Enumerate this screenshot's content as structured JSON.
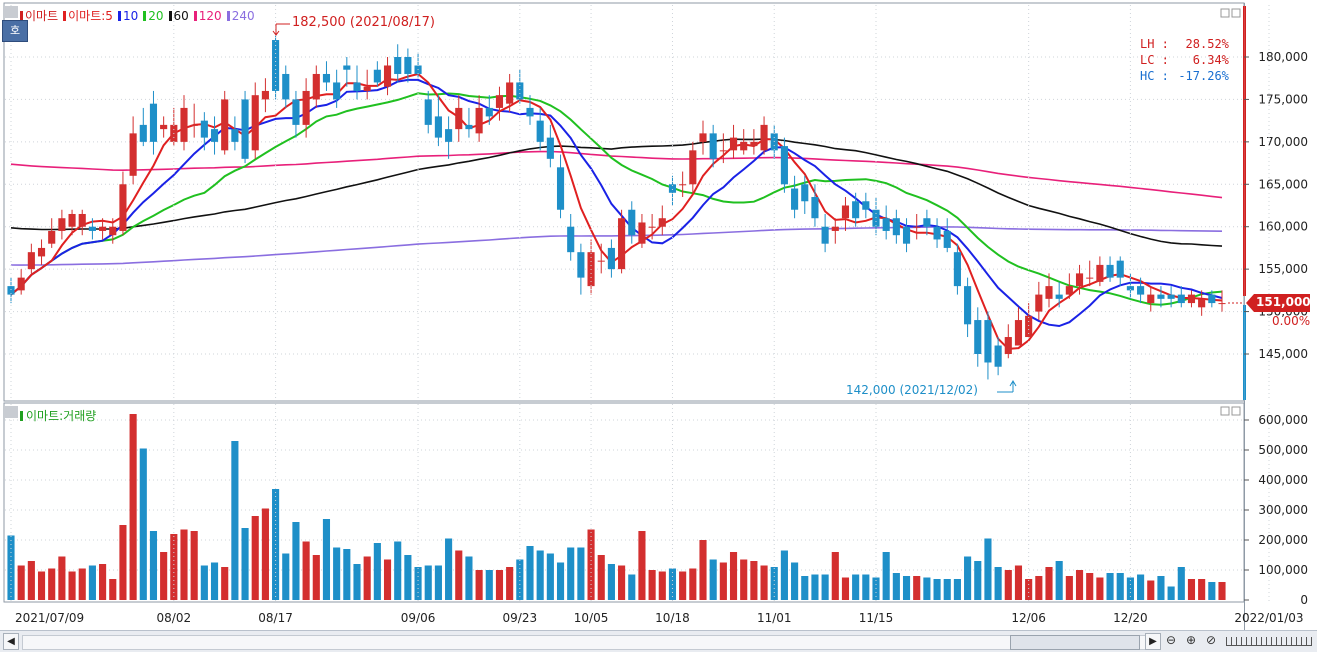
{
  "legend_price": [
    {
      "label": "이마트",
      "color": "#d02020"
    },
    {
      "label": "이마트:5",
      "color": "#e02020"
    },
    {
      "label": "10",
      "color": "#1a22e6"
    },
    {
      "label": "20",
      "color": "#20c020"
    },
    {
      "label": "60",
      "color": "#111111"
    },
    {
      "label": "120",
      "color": "#e8207a"
    },
    {
      "label": "240",
      "color": "#8a6ee0"
    }
  ],
  "legend_volume": {
    "label": "이마트:거래량",
    "color": "#20a020"
  },
  "hoga_label": "호",
  "annotations": {
    "high": "182,500 (2021/08/17)",
    "low": "142,000 (2021/12/02)"
  },
  "stats": [
    {
      "label": "LH",
      "value": "28.52%",
      "color": "#d02020"
    },
    {
      "label": "LC",
      "value": "6.34%",
      "color": "#d02020"
    },
    {
      "label": "HC",
      "value": "-17.26%",
      "color": "#1a6fd0"
    }
  ],
  "last_price": {
    "value": "151,000",
    "change": "0.00%"
  },
  "x_labels": [
    "2021/07/09",
    "08/02",
    "08/17",
    "09/06",
    "09/23",
    "10/05",
    "10/18",
    "11/01",
    "11/15",
    "12/06",
    "12/20",
    "2022/01/03"
  ],
  "price_ticks": [
    "180,000",
    "175,000",
    "170,000",
    "165,000",
    "160,000",
    "155,000",
    "150,000",
    "145,000"
  ],
  "volume_ticks": [
    "600,000",
    "500,000",
    "400,000",
    "300,000",
    "200,000",
    "100,000",
    "0"
  ],
  "chart_data": [
    {
      "type": "candlestick",
      "title": "이마트",
      "ylim": [
        140000,
        185000
      ],
      "x": [
        "2021/07/09",
        "07/12",
        "07/13",
        "07/14",
        "07/15",
        "07/16",
        "07/19",
        "07/20",
        "07/21",
        "07/22",
        "07/23",
        "07/26",
        "07/27",
        "07/28",
        "07/29",
        "07/30",
        "08/02",
        "08/03",
        "08/04",
        "08/05",
        "08/06",
        "08/09",
        "08/10",
        "08/11",
        "08/12",
        "08/13",
        "08/17",
        "08/18",
        "08/19",
        "08/20",
        "08/23",
        "08/24",
        "08/25",
        "08/26",
        "08/27",
        "08/30",
        "08/31",
        "09/01",
        "09/02",
        "09/03",
        "09/06",
        "09/07",
        "09/08",
        "09/09",
        "09/10",
        "09/13",
        "09/14",
        "09/15",
        "09/16",
        "09/17",
        "09/23",
        "09/24",
        "09/27",
        "09/28",
        "09/29",
        "09/30",
        "10/01",
        "10/05",
        "10/06",
        "10/07",
        "10/08",
        "10/12",
        "10/13",
        "10/14",
        "10/15",
        "10/18",
        "10/19",
        "10/20",
        "10/21",
        "10/22",
        "10/25",
        "10/26",
        "10/27",
        "10/28",
        "10/29",
        "11/01",
        "11/02",
        "11/03",
        "11/04",
        "11/05",
        "11/08",
        "11/09",
        "11/10",
        "11/11",
        "11/12",
        "11/15",
        "11/16",
        "11/17",
        "11/18",
        "11/19",
        "11/22",
        "11/23",
        "11/24",
        "11/25",
        "11/26",
        "11/29",
        "11/30",
        "12/01",
        "12/02",
        "12/03",
        "12/06",
        "12/07",
        "12/08",
        "12/09",
        "12/10",
        "12/13",
        "12/14",
        "12/15",
        "12/16",
        "12/17",
        "12/20",
        "12/21",
        "12/22",
        "12/23",
        "12/24",
        "12/27",
        "12/28",
        "12/29",
        "12/30",
        "2022/01/03"
      ],
      "open": [
        153000,
        152500,
        155000,
        156500,
        158000,
        159500,
        160000,
        160000,
        160000,
        159500,
        159000,
        159500,
        166000,
        172000,
        174500,
        171500,
        170000,
        170000,
        172000,
        172500,
        171500,
        169000,
        171500,
        175000,
        169000,
        175000,
        182000,
        178000,
        175000,
        172000,
        175000,
        178000,
        177000,
        179000,
        177000,
        176000,
        178500,
        176500,
        180000,
        180000,
        179000,
        175000,
        173000,
        171500,
        171500,
        172000,
        171000,
        174000,
        174000,
        174500,
        177000,
        174000,
        172500,
        170500,
        167000,
        160000,
        157000,
        153000,
        156000,
        157500,
        155000,
        162000,
        158000,
        160000,
        160000,
        165000,
        165000,
        165000,
        170000,
        171000,
        169000,
        169000,
        169000,
        169500,
        169000,
        171000,
        169500,
        164500,
        165000,
        163500,
        160000,
        159500,
        161000,
        163000,
        163000,
        162000,
        161000,
        161000,
        160000,
        160000,
        161000,
        160000,
        159500,
        157000,
        153000,
        149000,
        149000,
        146000,
        145000,
        146000,
        147000,
        150000,
        151500,
        152000,
        152000,
        153000,
        154000,
        153500,
        155500,
        156000,
        153000,
        153000,
        151000,
        152000,
        152000,
        152000,
        151000,
        150500,
        152000,
        151000
      ],
      "close": [
        152000,
        154000,
        157000,
        157500,
        159500,
        161000,
        161500,
        161500,
        159500,
        160000,
        160000,
        165000,
        171000,
        170000,
        170000,
        172000,
        172000,
        174000,
        172000,
        170500,
        170000,
        175000,
        170000,
        168000,
        175500,
        176000,
        176000,
        175000,
        172000,
        176000,
        178000,
        177000,
        175000,
        178500,
        176000,
        176500,
        177000,
        179000,
        178000,
        178000,
        178000,
        172000,
        170500,
        170000,
        174000,
        171500,
        174000,
        173000,
        175500,
        177000,
        175000,
        173000,
        170000,
        168000,
        162000,
        157000,
        154000,
        157000,
        156000,
        155000,
        161000,
        159000,
        160500,
        160000,
        161000,
        164000,
        165000,
        169000,
        171000,
        168000,
        169000,
        170500,
        170000,
        170000,
        172000,
        169000,
        165000,
        162000,
        163000,
        161000,
        158000,
        160000,
        162500,
        161000,
        162000,
        160000,
        159500,
        159000,
        158000,
        160000,
        160000,
        158500,
        157500,
        153000,
        148500,
        145000,
        144000,
        143500,
        147000,
        149000,
        149500,
        152000,
        153000,
        151500,
        153000,
        154500,
        154000,
        155500,
        154000,
        154000,
        152500,
        152000,
        152000,
        151500,
        151500,
        151000,
        152000,
        151500,
        151000,
        151000
      ],
      "high": [
        154000,
        155000,
        158000,
        158500,
        161000,
        162000,
        162000,
        162000,
        161000,
        161000,
        161000,
        166500,
        173000,
        174000,
        176000,
        173000,
        174000,
        175500,
        174500,
        173500,
        173000,
        176000,
        173000,
        176000,
        177000,
        177500,
        182500,
        179000,
        176000,
        177500,
        179000,
        179500,
        178500,
        180000,
        179000,
        178500,
        179500,
        180000,
        181500,
        181000,
        180500,
        176000,
        175500,
        173000,
        175500,
        174000,
        175500,
        175500,
        176500,
        178000,
        178500,
        175500,
        174000,
        172000,
        168500,
        161500,
        158000,
        158500,
        158000,
        158500,
        162000,
        163000,
        161500,
        161500,
        162500,
        166000,
        166500,
        170000,
        172500,
        172000,
        171000,
        172000,
        171500,
        171500,
        173000,
        172000,
        170500,
        166000,
        166000,
        165000,
        161500,
        161000,
        163500,
        164000,
        164000,
        163500,
        162500,
        162000,
        161000,
        161500,
        162000,
        161000,
        161000,
        158000,
        154000,
        150500,
        150000,
        147000,
        148500,
        150500,
        151000,
        153500,
        154500,
        153500,
        154500,
        155500,
        156000,
        156500,
        156500,
        156500,
        154500,
        154000,
        153000,
        153000,
        153000,
        153000,
        152500,
        152500,
        152500,
        152500
      ],
      "low": [
        151000,
        152000,
        154500,
        155500,
        157500,
        158500,
        159000,
        159000,
        158500,
        158500,
        158000,
        159000,
        165000,
        169500,
        168500,
        170500,
        169500,
        169000,
        170500,
        169000,
        168500,
        168500,
        169000,
        167500,
        168000,
        173500,
        175000,
        174000,
        170500,
        170500,
        174000,
        176000,
        174000,
        176500,
        175000,
        175000,
        176500,
        175500,
        177000,
        177000,
        177500,
        171000,
        169500,
        168000,
        170000,
        170500,
        170000,
        172000,
        172500,
        173500,
        174500,
        172000,
        169000,
        167000,
        161000,
        156000,
        152000,
        152000,
        154500,
        154000,
        154500,
        158000,
        157500,
        158500,
        159000,
        162500,
        163500,
        164000,
        168500,
        167000,
        167500,
        168000,
        168500,
        168500,
        168500,
        168000,
        164000,
        161000,
        161500,
        160000,
        157000,
        158000,
        159500,
        160000,
        161000,
        159000,
        158500,
        158000,
        157000,
        158500,
        159000,
        157500,
        157000,
        152000,
        147000,
        143500,
        142000,
        142500,
        144500,
        146000,
        147000,
        149000,
        150500,
        150500,
        151500,
        152000,
        153000,
        153000,
        153500,
        153000,
        151500,
        151000,
        150000,
        150500,
        150500,
        150500,
        150500,
        149500,
        150500,
        150000
      ]
    },
    {
      "type": "bar",
      "title": "이마트:거래량",
      "ylim": [
        0,
        650000
      ],
      "values": [
        215000,
        115000,
        130000,
        95000,
        105000,
        145000,
        95000,
        105000,
        115000,
        120000,
        70000,
        250000,
        620000,
        505000,
        230000,
        160000,
        220000,
        235000,
        230000,
        115000,
        125000,
        110000,
        530000,
        240000,
        280000,
        305000,
        370000,
        155000,
        260000,
        195000,
        150000,
        270000,
        175000,
        170000,
        120000,
        145000,
        190000,
        135000,
        195000,
        150000,
        110000,
        115000,
        115000,
        205000,
        165000,
        145000,
        100000,
        100000,
        100000,
        110000,
        135000,
        180000,
        165000,
        155000,
        125000,
        175000,
        175000,
        235000,
        150000,
        120000,
        115000,
        85000,
        230000,
        100000,
        95000,
        105000,
        95000,
        105000,
        200000,
        135000,
        125000,
        160000,
        135000,
        130000,
        115000,
        110000,
        165000,
        125000,
        80000,
        85000,
        85000,
        160000,
        75000,
        85000,
        85000,
        75000,
        160000,
        90000,
        80000,
        80000,
        75000,
        70000,
        70000,
        70000,
        145000,
        130000,
        205000,
        110000,
        100000,
        115000,
        70000,
        80000,
        110000,
        130000,
        80000,
        100000,
        90000,
        75000,
        90000,
        90000,
        75000,
        85000,
        65000,
        80000,
        45000,
        110000,
        70000,
        70000,
        60000,
        60000
      ],
      "up_color": "#d32f2f",
      "down_color": "#1e8fc8"
    }
  ]
}
